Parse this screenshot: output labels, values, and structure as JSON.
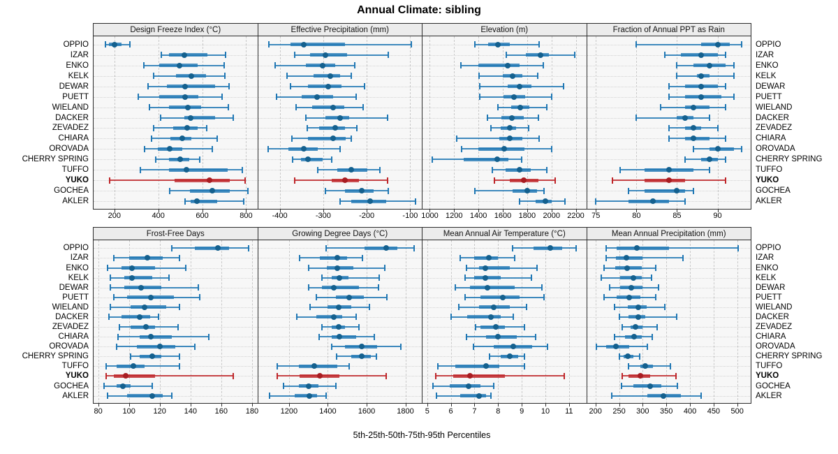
{
  "title": "Annual Climate: sibling",
  "footer": "5th-25th-50th-75th-95th Percentiles",
  "highlight_category": "YUKO",
  "colors": {
    "normal": "#1f77b4",
    "normal_dot": "#14608e",
    "highlight": "#be2428",
    "highlight_dot": "#a81d22",
    "panel_bg": "#f7f7f7",
    "strip_bg": "#ececec",
    "grid_vertical": "#c9c9c9",
    "grid_horizontal": "#d2d2d2"
  },
  "chart_data": {
    "type": "percentile-dotplot-trellis",
    "percentiles": [
      5,
      25,
      50,
      75,
      95
    ],
    "legend_position": "none",
    "grid": "on",
    "categories": [
      "OPPIO",
      "IZAR",
      "ENKO",
      "KELK",
      "DEWAR",
      "PUETT",
      "WIELAND",
      "DACKER",
      "ZEVADEZ",
      "CHIARA",
      "OROVADA",
      "CHERRY SPRING",
      "TUFFO",
      "YUKO",
      "GOCHEA",
      "AKLER"
    ],
    "highlight": "YUKO",
    "panels": [
      {
        "title": "Design Freeze Index (°C)",
        "band": "top",
        "col": 0,
        "xlim": [
          105,
          848
        ],
        "ticks": [
          200,
          400,
          600,
          800
        ],
        "values": [
          [
            158,
            175,
            200,
            232,
            270
          ],
          [
            413,
            450,
            520,
            625,
            705
          ],
          [
            335,
            405,
            495,
            580,
            700
          ],
          [
            378,
            480,
            550,
            617,
            703
          ],
          [
            352,
            440,
            522,
            660,
            722
          ],
          [
            310,
            405,
            522,
            582,
            690
          ],
          [
            360,
            450,
            535,
            595,
            718
          ],
          [
            412,
            520,
            548,
            660,
            742
          ],
          [
            378,
            468,
            530,
            578,
            620
          ],
          [
            368,
            455,
            508,
            552,
            668
          ],
          [
            337,
            397,
            452,
            510,
            645
          ],
          [
            388,
            448,
            500,
            540,
            588
          ],
          [
            318,
            450,
            527,
            715,
            783
          ],
          [
            179,
            473,
            634,
            726,
            797
          ],
          [
            452,
            543,
            647,
            726,
            807
          ],
          [
            522,
            548,
            577,
            669,
            788
          ]
        ]
      },
      {
        "title": "Effective Precipitation (mm)",
        "band": "top",
        "col": 1,
        "xlim": [
          -450,
          -75
        ],
        "ticks": [
          -400,
          -300,
          -200,
          -100
        ],
        "values": [
          [
            -425,
            -375,
            -345,
            -250,
            -98
          ],
          [
            -365,
            -330,
            -295,
            -245,
            -150
          ],
          [
            -410,
            -340,
            -302,
            -272,
            -228
          ],
          [
            -383,
            -322,
            -283,
            -262,
            -235
          ],
          [
            -375,
            -335,
            -288,
            -258,
            -205
          ],
          [
            -408,
            -350,
            -315,
            -278,
            -225
          ],
          [
            -362,
            -325,
            -277,
            -252,
            -208
          ],
          [
            -340,
            -295,
            -262,
            -240,
            -152
          ],
          [
            -337,
            -310,
            -272,
            -250,
            -222
          ],
          [
            -372,
            -335,
            -278,
            -248,
            -235
          ],
          [
            -427,
            -380,
            -345,
            -312,
            -262
          ],
          [
            -370,
            -352,
            -335,
            -302,
            -280
          ],
          [
            -312,
            -268,
            -235,
            -198,
            -170
          ],
          [
            -365,
            -280,
            -250,
            -218,
            -152
          ],
          [
            -295,
            -250,
            -212,
            -185,
            -150
          ],
          [
            -262,
            -235,
            -193,
            -155,
            -88
          ]
        ]
      },
      {
        "title": "Elevation (m)",
        "band": "top",
        "col": 2,
        "xlim": [
          940,
          2280
        ],
        "ticks": [
          1000,
          1200,
          1400,
          1600,
          1800,
          2000,
          2200
        ],
        "values": [
          [
            1370,
            1480,
            1560,
            1660,
            1900
          ],
          [
            1630,
            1790,
            1910,
            1980,
            2190
          ],
          [
            1255,
            1400,
            1640,
            1740,
            1930
          ],
          [
            1405,
            1600,
            1680,
            1760,
            1885
          ],
          [
            1410,
            1640,
            1735,
            1835,
            2100
          ],
          [
            1410,
            1605,
            1690,
            1785,
            2000
          ],
          [
            1560,
            1670,
            1745,
            1820,
            1960
          ],
          [
            1475,
            1590,
            1675,
            1775,
            1890
          ],
          [
            1500,
            1580,
            1655,
            1710,
            1815
          ],
          [
            1220,
            1570,
            1655,
            1760,
            1900
          ],
          [
            1260,
            1400,
            1610,
            1780,
            2000
          ],
          [
            1020,
            1280,
            1555,
            1645,
            1755
          ],
          [
            1515,
            1625,
            1735,
            1830,
            1960
          ],
          [
            1530,
            1655,
            1770,
            1890,
            2030
          ],
          [
            1370,
            1680,
            1800,
            1880,
            1940
          ],
          [
            1740,
            1870,
            1950,
            2000,
            2110
          ]
        ]
      },
      {
        "title": "Fraction of Annual PPT as Rain",
        "band": "top",
        "col": 3,
        "xlim": [
          73.9,
          94
        ],
        "ticks": [
          75,
          80,
          85,
          90
        ],
        "values": [
          [
            80,
            88,
            90,
            91.5,
            93
          ],
          [
            83.5,
            85.5,
            88,
            90,
            91
          ],
          [
            85,
            87,
            89,
            91,
            92
          ],
          [
            85,
            87.5,
            88,
            89,
            92
          ],
          [
            84,
            86,
            88,
            90,
            91
          ],
          [
            84,
            86,
            88,
            90.5,
            92
          ],
          [
            83,
            86,
            87,
            89,
            91
          ],
          [
            80,
            85,
            86,
            87,
            89
          ],
          [
            84,
            86,
            87,
            88,
            90
          ],
          [
            84,
            86,
            87,
            89,
            91
          ],
          [
            87,
            89,
            90,
            92,
            93
          ],
          [
            86,
            88,
            89,
            90,
            91
          ],
          [
            78,
            81,
            84,
            87,
            89
          ],
          [
            77,
            81,
            84,
            86,
            91
          ],
          [
            79,
            81,
            85,
            86,
            87
          ],
          [
            75,
            79,
            82,
            84,
            86
          ]
        ]
      },
      {
        "title": "Frost-Free Days",
        "band": "bottom",
        "col": 0,
        "xlim": [
          77,
          183
        ],
        "ticks": [
          80,
          100,
          120,
          140,
          160,
          180
        ],
        "values": [
          [
            128,
            143,
            158,
            165,
            178
          ],
          [
            90,
            100,
            112,
            122,
            133
          ],
          [
            86,
            95,
            102,
            117,
            137
          ],
          [
            88,
            97,
            102,
            115,
            126
          ],
          [
            88,
            97,
            108,
            121,
            145
          ],
          [
            90,
            99,
            114,
            129,
            146
          ],
          [
            88,
            101,
            110,
            124,
            133
          ],
          [
            87,
            95,
            107,
            114,
            119
          ],
          [
            94,
            101,
            111,
            117,
            132
          ],
          [
            93,
            107,
            114,
            128,
            152
          ],
          [
            92,
            105,
            120,
            130,
            143
          ],
          [
            101,
            107,
            115,
            121,
            133
          ],
          [
            85,
            92,
            103,
            110,
            133
          ],
          [
            85,
            90,
            98,
            117,
            168
          ],
          [
            84,
            92,
            96,
            101,
            115
          ],
          [
            86,
            99,
            115,
            122,
            128
          ]
        ]
      },
      {
        "title": "Growing Degree Days (°C)",
        "band": "bottom",
        "col": 1,
        "xlim": [
          1040,
          1881
        ],
        "ticks": [
          1200,
          1400,
          1600,
          1800
        ],
        "values": [
          [
            1390,
            1590,
            1700,
            1760,
            1845
          ],
          [
            1255,
            1360,
            1450,
            1500,
            1580
          ],
          [
            1300,
            1395,
            1450,
            1530,
            1695
          ],
          [
            1370,
            1420,
            1460,
            1505,
            1665
          ],
          [
            1300,
            1370,
            1430,
            1560,
            1660
          ],
          [
            1340,
            1440,
            1510,
            1585,
            1705
          ],
          [
            1310,
            1400,
            1455,
            1520,
            1615
          ],
          [
            1240,
            1340,
            1430,
            1475,
            1545
          ],
          [
            1370,
            1420,
            1455,
            1490,
            1560
          ],
          [
            1355,
            1420,
            1460,
            1545,
            1640
          ],
          [
            1420,
            1490,
            1575,
            1655,
            1775
          ],
          [
            1445,
            1520,
            1575,
            1620,
            1650
          ],
          [
            1140,
            1250,
            1330,
            1450,
            1510
          ],
          [
            1140,
            1255,
            1360,
            1460,
            1700
          ],
          [
            1170,
            1250,
            1300,
            1350,
            1440
          ],
          [
            1100,
            1230,
            1305,
            1345,
            1390
          ]
        ]
      },
      {
        "title": "Mean Annual Air Temperature (°C)",
        "band": "bottom",
        "col": 2,
        "xlim": [
          4.8,
          11.7
        ],
        "ticks": [
          5,
          6,
          7,
          8,
          9,
          10,
          11
        ],
        "values": [
          [
            8.6,
            9.5,
            10.2,
            10.7,
            11.3
          ],
          [
            6.4,
            7.0,
            7.6,
            8.0,
            8.7
          ],
          [
            6.65,
            7.2,
            7.45,
            8.5,
            9.65
          ],
          [
            6.6,
            7.0,
            7.45,
            8.1,
            9.4
          ],
          [
            6.2,
            6.8,
            7.55,
            8.7,
            9.85
          ],
          [
            6.6,
            7.25,
            8.2,
            8.9,
            9.95
          ],
          [
            6.35,
            7.2,
            7.8,
            8.5,
            9.2
          ],
          [
            6.0,
            6.7,
            7.7,
            8.1,
            8.65
          ],
          [
            7.05,
            7.25,
            7.9,
            8.3,
            9.1
          ],
          [
            6.65,
            7.5,
            8.0,
            8.8,
            9.6
          ],
          [
            6.95,
            7.8,
            8.65,
            9.45,
            10.1
          ],
          [
            7.65,
            8.1,
            8.5,
            8.85,
            9.1
          ],
          [
            5.45,
            6.2,
            7.5,
            8.05,
            9.1
          ],
          [
            5.35,
            6.1,
            6.8,
            8.3,
            10.8
          ],
          [
            5.25,
            5.95,
            6.75,
            7.25,
            7.8
          ],
          [
            5.4,
            6.4,
            7.2,
            7.5,
            7.7
          ]
        ]
      },
      {
        "title": "Mean Annual Precipitation (mm)",
        "band": "bottom",
        "col": 3,
        "xlim": [
          182,
          527
        ],
        "ticks": [
          200,
          250,
          300,
          350,
          400,
          450,
          500
        ],
        "values": [
          [
            222,
            245,
            288,
            356,
            502
          ],
          [
            223,
            244,
            266,
            300,
            385
          ],
          [
            218,
            242,
            267,
            298,
            327
          ],
          [
            212,
            252,
            280,
            298,
            318
          ],
          [
            230,
            252,
            276,
            300,
            333
          ],
          [
            218,
            245,
            272,
            295,
            328
          ],
          [
            240,
            268,
            290,
            308,
            347
          ],
          [
            250,
            270,
            290,
            305,
            372
          ],
          [
            257,
            275,
            285,
            300,
            330
          ],
          [
            240,
            262,
            282,
            298,
            320
          ],
          [
            202,
            222,
            244,
            272,
            310
          ],
          [
            250,
            260,
            268,
            280,
            293
          ],
          [
            270,
            295,
            305,
            322,
            358
          ],
          [
            257,
            270,
            295,
            315,
            370
          ],
          [
            255,
            280,
            316,
            340,
            374
          ],
          [
            235,
            310,
            344,
            380,
            424
          ]
        ]
      }
    ]
  }
}
